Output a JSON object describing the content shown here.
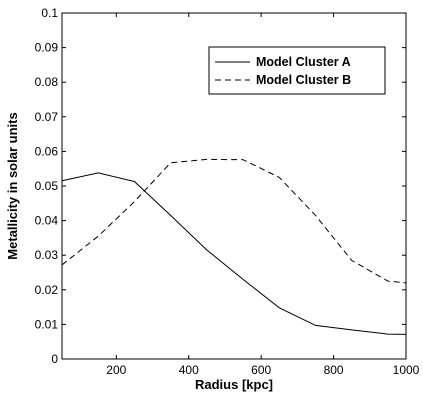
{
  "chart_data": {
    "type": "line",
    "xlabel": "Radius [kpc]",
    "ylabel": "Metallicity in solar units",
    "xlim": [
      50,
      1000
    ],
    "ylim": [
      0,
      0.1
    ],
    "xticks": [
      200,
      400,
      600,
      800,
      1000
    ],
    "yticks": [
      0,
      0.01,
      0.02,
      0.03,
      0.04,
      0.05,
      0.06,
      0.07,
      0.08,
      0.09,
      0.1
    ],
    "xtick_labels": [
      "200",
      "400",
      "600",
      "800",
      "1000"
    ],
    "ytick_labels": [
      "0",
      "0.01",
      "0.02",
      "0.03",
      "0.04",
      "0.05",
      "0.06",
      "0.07",
      "0.08",
      "0.09",
      "0.1"
    ],
    "grid": false,
    "legend_position": "top-right",
    "series": [
      {
        "name": "Model Cluster A",
        "style": "solid",
        "color": "#000000",
        "x": [
          50,
          150,
          250,
          350,
          450,
          550,
          650,
          750,
          850,
          950,
          1000
        ],
        "y": [
          0.0515,
          0.0538,
          0.0513,
          0.0415,
          0.0315,
          0.023,
          0.0148,
          0.0097,
          0.0084,
          0.0072,
          0.0071
        ]
      },
      {
        "name": "Model Cluster B",
        "style": "dashed",
        "color": "#000000",
        "x": [
          50,
          150,
          250,
          350,
          450,
          550,
          650,
          750,
          850,
          950,
          1000
        ],
        "y": [
          0.0272,
          0.0355,
          0.0455,
          0.0567,
          0.0577,
          0.0576,
          0.0525,
          0.0415,
          0.0285,
          0.0225,
          0.022
        ]
      }
    ]
  }
}
